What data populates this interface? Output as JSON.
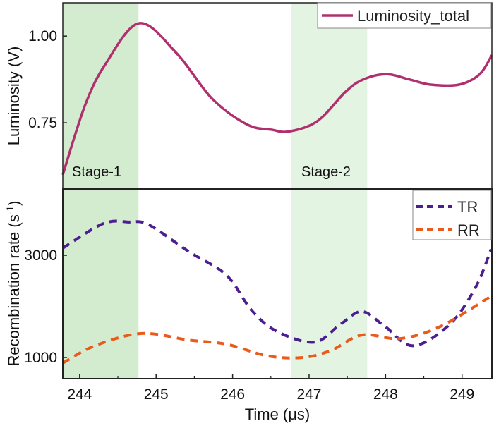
{
  "chart_data": {
    "type": "line",
    "xlabel": "Time (μs)",
    "xlim": [
      243.78,
      249.39
    ],
    "xticks": [
      "244",
      "245",
      "246",
      "247",
      "248",
      "249"
    ],
    "xtick_values": [
      244,
      245,
      246,
      247,
      248,
      249
    ],
    "shaded_regions": [
      {
        "label": "Stage-1",
        "range": [
          243.78,
          244.77
        ],
        "color": "#d3ecd0"
      },
      {
        "label": "Stage-2",
        "range": [
          246.76,
          247.76
        ],
        "color": "#e4f4e2"
      }
    ],
    "panels": [
      {
        "ylabel": "Luminosity (V)",
        "ylim": [
          0.559,
          1.096
        ],
        "yticks": [
          "0.75",
          "1.00"
        ],
        "ytick_values": [
          0.75,
          1.0
        ],
        "series": [
          {
            "name": "Luminosity_total",
            "color": "#b0306e",
            "dash": false,
            "x": [
              243.78,
              244.07,
              244.34,
              244.78,
              245.27,
              245.73,
              246.19,
              246.51,
              246.74,
              247.11,
              247.48,
              247.71,
              248.01,
              248.31,
              248.59,
              248.96,
              249.23,
              249.39
            ],
            "y": [
              0.6,
              0.8,
              0.92,
              1.037,
              0.95,
              0.82,
              0.745,
              0.73,
              0.725,
              0.755,
              0.84,
              0.875,
              0.89,
              0.875,
              0.86,
              0.86,
              0.89,
              0.945
            ]
          }
        ]
      },
      {
        "ylabel": "Recombination rate (s",
        "ylabel_sup": "-1",
        "ylabel_end": ")",
        "ylim": [
          586,
          4297
        ],
        "yticks": [
          "1000",
          "3000"
        ],
        "ytick_values": [
          1000,
          3000
        ],
        "series": [
          {
            "name": "TR",
            "color": "#4b1f8f",
            "dash": true,
            "x": [
              243.78,
              244.31,
              244.65,
              244.9,
              245.43,
              245.92,
              246.25,
              246.58,
              247.07,
              247.41,
              247.69,
              247.99,
              248.36,
              248.84,
              249.18,
              249.38
            ],
            "y": [
              3140,
              3620,
              3650,
              3600,
              3070,
              2610,
              1920,
              1510,
              1300,
              1650,
              1900,
              1610,
              1230,
              1650,
              2380,
              3120
            ]
          },
          {
            "name": "RR",
            "color": "#ea5a1a",
            "dash": true,
            "x": [
              243.78,
              244.2,
              244.81,
              245.43,
              245.92,
              246.46,
              246.92,
              247.29,
              247.69,
              248.19,
              248.72,
              249.38
            ],
            "y": [
              890,
              1230,
              1470,
              1340,
              1260,
              1030,
              1000,
              1140,
              1440,
              1370,
              1610,
              2200
            ]
          }
        ]
      }
    ]
  }
}
